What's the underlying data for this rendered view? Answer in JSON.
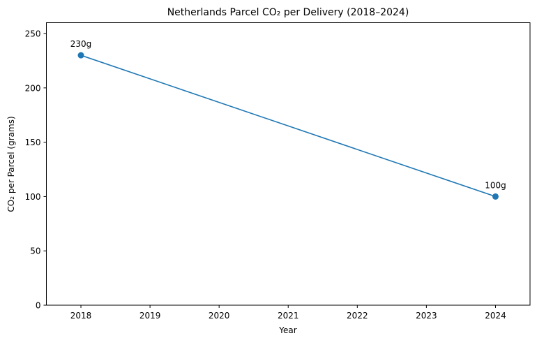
{
  "chart_data": {
    "type": "line",
    "title": "Netherlands Parcel CO₂ per Delivery (2018–2024)",
    "xlabel": "Year",
    "ylabel": "CO₂ per Parcel (grams)",
    "x": [
      2018,
      2024
    ],
    "series": [
      {
        "name": "CO₂ per Parcel",
        "values": [
          230,
          100
        ],
        "labels": [
          "230g",
          "100g"
        ],
        "color": "#1f77b4",
        "marker": "circle"
      }
    ],
    "xticks": [
      "2018",
      "2019",
      "2020",
      "2021",
      "2022",
      "2023",
      "2024"
    ],
    "yticks": [
      "0",
      "50",
      "100",
      "150",
      "200",
      "250"
    ],
    "xlim": [
      2017.5,
      2024.5
    ],
    "ylim": [
      0,
      260
    ],
    "grid": false,
    "legend": null
  }
}
